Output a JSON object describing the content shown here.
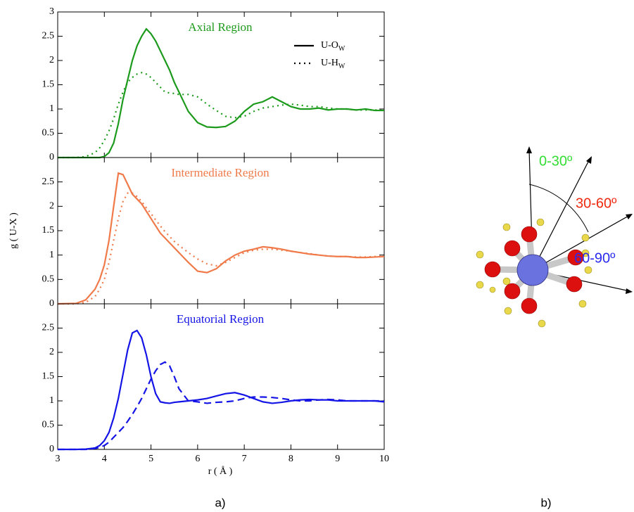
{
  "chart_data": [
    {
      "type": "line",
      "title": "Axial Region",
      "title_color": "#1c9a1c",
      "x": [
        3.0,
        3.4,
        3.6,
        3.8,
        3.9,
        4.0,
        4.1,
        4.2,
        4.3,
        4.4,
        4.5,
        4.6,
        4.7,
        4.8,
        4.9,
        5.0,
        5.1,
        5.2,
        5.3,
        5.4,
        5.5,
        5.6,
        5.8,
        6.0,
        6.2,
        6.4,
        6.6,
        6.8,
        7.0,
        7.2,
        7.4,
        7.6,
        7.8,
        8.0,
        8.2,
        8.4,
        8.6,
        8.8,
        9.0,
        9.2,
        9.4,
        9.6,
        9.8,
        10.0
      ],
      "series": [
        {
          "name": "U-OW",
          "color": "#1c9a1c",
          "dash": "solid",
          "values": [
            0,
            0,
            0,
            0,
            0,
            0.02,
            0.1,
            0.3,
            0.7,
            1.2,
            1.6,
            2.0,
            2.3,
            2.5,
            2.65,
            2.55,
            2.4,
            2.2,
            2.0,
            1.8,
            1.55,
            1.35,
            0.95,
            0.72,
            0.63,
            0.62,
            0.64,
            0.75,
            0.95,
            1.1,
            1.15,
            1.25,
            1.15,
            1.05,
            1.0,
            1.0,
            1.02,
            0.98,
            1.0,
            1.0,
            0.98,
            1.0,
            0.97,
            0.97
          ]
        },
        {
          "name": "U-HW",
          "color": "#1c9a1c",
          "dash": "dotted",
          "values": [
            0,
            0,
            0.02,
            0.1,
            0.2,
            0.35,
            0.55,
            0.8,
            1.1,
            1.35,
            1.55,
            1.65,
            1.72,
            1.75,
            1.72,
            1.65,
            1.55,
            1.45,
            1.35,
            1.33,
            1.32,
            1.3,
            1.3,
            1.25,
            1.1,
            0.97,
            0.85,
            0.82,
            0.85,
            0.95,
            1.02,
            1.05,
            1.08,
            1.1,
            1.08,
            1.05,
            1.05,
            1.02,
            1.0,
            1.0,
            0.98,
            0.98,
            0.98,
            0.97
          ]
        }
      ],
      "xlim": [
        3,
        10
      ],
      "ylim": [
        0,
        3
      ],
      "yticks": [
        0,
        0.5,
        1,
        1.5,
        2,
        2.5,
        3
      ]
    },
    {
      "type": "line",
      "title": "Intermediate Region",
      "title_color": "#f07a4a",
      "ylabel": "g ( U-X )",
      "x": [
        3.0,
        3.4,
        3.6,
        3.8,
        3.9,
        4.0,
        4.1,
        4.2,
        4.3,
        4.4,
        4.5,
        4.6,
        4.7,
        4.8,
        4.9,
        5.0,
        5.1,
        5.2,
        5.3,
        5.4,
        5.5,
        5.6,
        5.8,
        6.0,
        6.2,
        6.4,
        6.6,
        6.8,
        7.0,
        7.2,
        7.4,
        7.6,
        7.8,
        8.0,
        8.2,
        8.4,
        8.6,
        8.8,
        9.0,
        9.2,
        9.4,
        9.6,
        9.8,
        10.0
      ],
      "series": [
        {
          "color": "#f07a4a",
          "dash": "solid",
          "values": [
            0,
            0.01,
            0.08,
            0.3,
            0.5,
            0.8,
            1.3,
            2.0,
            2.68,
            2.65,
            2.45,
            2.25,
            2.15,
            2.05,
            1.9,
            1.75,
            1.6,
            1.45,
            1.35,
            1.25,
            1.15,
            1.05,
            0.85,
            0.67,
            0.64,
            0.72,
            0.88,
            1.0,
            1.08,
            1.12,
            1.17,
            1.15,
            1.12,
            1.08,
            1.05,
            1.02,
            1.0,
            0.98,
            0.97,
            0.97,
            0.95,
            0.95,
            0.96,
            0.97
          ]
        },
        {
          "color": "#f07a4a",
          "dash": "dotted",
          "values": [
            0,
            0,
            0.03,
            0.15,
            0.3,
            0.5,
            0.85,
            1.3,
            1.75,
            2.1,
            2.27,
            2.27,
            2.2,
            2.1,
            1.97,
            1.85,
            1.72,
            1.6,
            1.48,
            1.38,
            1.28,
            1.2,
            1.05,
            0.92,
            0.82,
            0.78,
            0.85,
            0.95,
            1.05,
            1.1,
            1.12,
            1.12,
            1.1,
            1.08,
            1.05,
            1.03,
            1.0,
            0.98,
            0.97,
            0.97,
            0.96,
            0.96,
            0.97,
            0.97
          ]
        }
      ],
      "xlim": [
        3,
        10
      ],
      "ylim": [
        0,
        3
      ],
      "yticks": [
        0,
        0.5,
        1,
        1.5,
        2,
        2.5
      ]
    },
    {
      "type": "line",
      "title": "Equatorial Region",
      "title_color": "#1414e6",
      "xlabel": "r ( Å )",
      "x": [
        3.0,
        3.4,
        3.6,
        3.8,
        3.9,
        4.0,
        4.1,
        4.2,
        4.3,
        4.4,
        4.5,
        4.6,
        4.7,
        4.8,
        4.9,
        5.0,
        5.1,
        5.2,
        5.3,
        5.4,
        5.5,
        5.6,
        5.8,
        6.0,
        6.2,
        6.4,
        6.6,
        6.8,
        7.0,
        7.2,
        7.4,
        7.6,
        7.8,
        8.0,
        8.2,
        8.4,
        8.6,
        8.8,
        9.0,
        9.2,
        9.4,
        9.6,
        9.8,
        10.0
      ],
      "series": [
        {
          "color": "#1414e6",
          "dash": "solid",
          "values": [
            0,
            0,
            0.005,
            0.03,
            0.08,
            0.18,
            0.35,
            0.65,
            1.05,
            1.55,
            2.05,
            2.4,
            2.45,
            2.3,
            1.95,
            1.5,
            1.15,
            0.98,
            0.96,
            0.95,
            0.97,
            0.98,
            1.0,
            1.02,
            1.05,
            1.1,
            1.15,
            1.17,
            1.12,
            1.05,
            0.98,
            0.95,
            0.97,
            1.0,
            1.02,
            1.03,
            1.02,
            1.02,
            1.0,
            1.0,
            1.0,
            1.0,
            1.0,
            0.98
          ]
        },
        {
          "color": "#1414e6",
          "dash": "dashed",
          "values": [
            0,
            0,
            0,
            0.02,
            0.04,
            0.08,
            0.15,
            0.25,
            0.35,
            0.45,
            0.58,
            0.72,
            0.88,
            1.05,
            1.25,
            1.45,
            1.62,
            1.75,
            1.8,
            1.72,
            1.5,
            1.25,
            1.0,
            0.98,
            0.95,
            0.97,
            0.98,
            1.0,
            1.05,
            1.08,
            1.08,
            1.07,
            1.05,
            1.02,
            1.0,
            1.0,
            1.02,
            1.03,
            1.02,
            1.0,
            1.0,
            1.0,
            1.0,
            1.0
          ]
        }
      ],
      "xlim": [
        3,
        10
      ],
      "ylim": [
        0,
        3
      ],
      "xticks": [
        3,
        4,
        5,
        6,
        7,
        8,
        9,
        10
      ],
      "yticks": [
        0,
        0.5,
        1,
        1.5,
        2,
        2.5
      ]
    }
  ],
  "figure": {
    "caption_a": "a)",
    "caption_b": "b)",
    "angles": [
      {
        "label": "0-30º",
        "color": "#33dd33"
      },
      {
        "label": "30-60º",
        "color": "#ee2a10"
      },
      {
        "label": "60-90º",
        "color": "#2a2aee"
      }
    ]
  }
}
